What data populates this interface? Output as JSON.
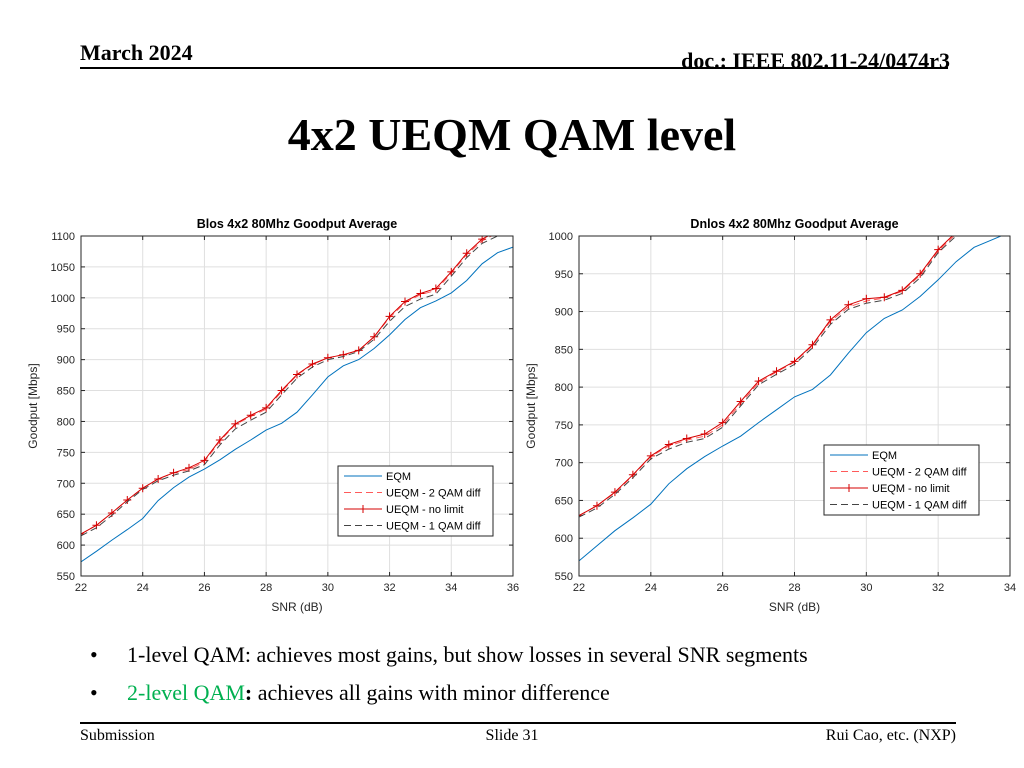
{
  "header": {
    "left": "March 2024",
    "right": "doc.: IEEE 802.11-24/0474r3"
  },
  "title": "4x2 UEQM QAM level",
  "chart_data": [
    {
      "type": "line",
      "title": "Blos 4x2  80Mhz Goodput Average",
      "xlabel": "SNR (dB)",
      "ylabel": "Goodput [Mbps]",
      "xlim": [
        22,
        36
      ],
      "ylim": [
        550,
        1100
      ],
      "xticks": [
        22,
        24,
        26,
        28,
        30,
        32,
        34,
        36
      ],
      "yticks": [
        550,
        600,
        650,
        700,
        750,
        800,
        850,
        900,
        950,
        1000,
        1050,
        1100
      ],
      "grid": true,
      "legend_position": "lower-right",
      "x": [
        22,
        22.5,
        23,
        23.5,
        24,
        24.5,
        25,
        25.5,
        26,
        26.5,
        27,
        27.5,
        28,
        28.5,
        29,
        29.5,
        30,
        30.5,
        31,
        31.5,
        32,
        32.5,
        33,
        33.5,
        34,
        34.5,
        35,
        35.5,
        36
      ],
      "series": [
        {
          "name": "EQM",
          "color": "#0072bd",
          "style": "solid",
          "marker": "none",
          "values": [
            573,
            590,
            608,
            625,
            643,
            672,
            693,
            710,
            723,
            738,
            755,
            770,
            786,
            797,
            815,
            843,
            872,
            890,
            900,
            918,
            940,
            965,
            984,
            995,
            1008,
            1028,
            1055,
            1073,
            1082
          ]
        },
        {
          "name": "UEQM - 2 QAM diff",
          "color": "#ff5a5a",
          "style": "dash",
          "marker": "none",
          "values": [
            618,
            632,
            652,
            673,
            692,
            707,
            717,
            722,
            735,
            768,
            795,
            808,
            820,
            848,
            875,
            892,
            903,
            908,
            915,
            937,
            968,
            992,
            1005,
            1012,
            1040,
            1070,
            1092,
            1105,
            1110
          ]
        },
        {
          "name": "UEQM - no limit",
          "color": "#d40000",
          "style": "solid",
          "marker": "plus",
          "values": [
            618,
            632,
            652,
            673,
            692,
            707,
            717,
            725,
            737,
            770,
            796,
            810,
            822,
            850,
            876,
            893,
            903,
            908,
            915,
            937,
            970,
            994,
            1007,
            1015,
            1042,
            1072,
            1095,
            1108,
            1112
          ]
        },
        {
          "name": "UEQM - 1 QAM diff",
          "color": "#444444",
          "style": "dash",
          "marker": "none",
          "values": [
            615,
            628,
            648,
            670,
            690,
            704,
            713,
            720,
            730,
            762,
            788,
            802,
            815,
            843,
            870,
            888,
            900,
            905,
            913,
            933,
            962,
            986,
            998,
            1006,
            1035,
            1065,
            1088,
            1100,
            1106
          ]
        }
      ]
    },
    {
      "type": "line",
      "title": "Dnlos 4x2  80Mhz Goodput Average",
      "xlabel": "SNR (dB)",
      "ylabel": "Goodput [Mbps]",
      "xlim": [
        22,
        34
      ],
      "ylim": [
        550,
        1000
      ],
      "xticks": [
        22,
        24,
        26,
        28,
        30,
        32,
        34
      ],
      "yticks": [
        550,
        600,
        650,
        700,
        750,
        800,
        850,
        900,
        950,
        1000
      ],
      "grid": true,
      "legend_position": "center-right",
      "x": [
        22,
        22.5,
        23,
        23.5,
        24,
        24.5,
        25,
        25.5,
        26,
        26.5,
        27,
        27.5,
        28,
        28.5,
        29,
        29.5,
        30,
        30.5,
        31,
        31.5,
        32,
        32.5,
        33,
        33.5,
        34
      ],
      "series": [
        {
          "name": "EQM",
          "color": "#0072bd",
          "style": "solid",
          "marker": "none",
          "values": [
            570,
            590,
            610,
            627,
            645,
            672,
            692,
            708,
            722,
            735,
            753,
            770,
            787,
            797,
            816,
            845,
            872,
            891,
            902,
            920,
            942,
            966,
            985,
            995,
            1005
          ]
        },
        {
          "name": "UEQM - 2 QAM diff",
          "color": "#ff5a5a",
          "style": "dash",
          "marker": "none",
          "values": [
            630,
            643,
            660,
            683,
            708,
            722,
            730,
            735,
            750,
            778,
            806,
            820,
            833,
            855,
            887,
            906,
            914,
            918,
            927,
            948,
            980,
            1003,
            1010,
            1015,
            1020
          ]
        },
        {
          "name": "UEQM - no limit",
          "color": "#d40000",
          "style": "solid",
          "marker": "plus",
          "values": [
            630,
            643,
            661,
            684,
            709,
            724,
            732,
            738,
            753,
            781,
            808,
            821,
            834,
            856,
            889,
            909,
            917,
            919,
            928,
            950,
            982,
            1005,
            1012,
            1016,
            1021
          ]
        },
        {
          "name": "UEQM - 1 QAM diff",
          "color": "#444444",
          "style": "dash",
          "marker": "none",
          "values": [
            628,
            640,
            658,
            680,
            705,
            718,
            727,
            732,
            747,
            775,
            803,
            817,
            830,
            852,
            883,
            903,
            911,
            915,
            924,
            945,
            978,
            1000,
            1008,
            1012,
            1018
          ]
        }
      ]
    }
  ],
  "bullets": [
    {
      "text": "1-level QAM: achieves most gains, but show losses in several SNR segments"
    },
    {
      "highlight": "2-level QAM",
      "sep": ":",
      "text": " achieves all gains with minor difference",
      "highlight_color": "#00b050"
    }
  ],
  "footer": {
    "left": "Submission",
    "center": "Slide 31",
    "right": "Rui Cao, etc. (NXP)"
  }
}
